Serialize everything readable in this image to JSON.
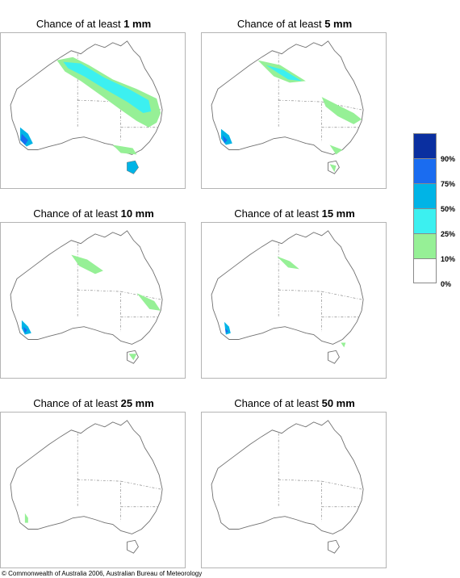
{
  "panels": [
    {
      "title_prefix": "Chance of at least ",
      "threshold": "1 mm"
    },
    {
      "title_prefix": "Chance of at least ",
      "threshold": "5 mm"
    },
    {
      "title_prefix": "Chance of at least ",
      "threshold": "10 mm"
    },
    {
      "title_prefix": "Chance of at least ",
      "threshold": "15 mm"
    },
    {
      "title_prefix": "Chance of at least ",
      "threshold": "25 mm"
    },
    {
      "title_prefix": "Chance of at least ",
      "threshold": "50 mm"
    }
  ],
  "legend": {
    "labels": [
      "90%",
      "75%",
      "50%",
      "25%",
      "10%",
      "0%"
    ],
    "colors": [
      "#0a2fa0",
      "#1a6cf0",
      "#00b4e6",
      "#3cf0f0",
      "#96f096",
      "#ffffff"
    ]
  },
  "copyright": "© Commonwealth of Australia 2006, Australian Bureau of Meteorology"
}
